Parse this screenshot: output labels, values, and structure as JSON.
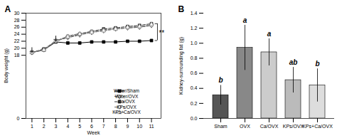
{
  "chart_data": [
    {
      "type": "line",
      "title": "A",
      "xlabel": "Week",
      "ylabel": "Body weight (g)",
      "x": [
        1,
        2,
        3,
        4,
        5,
        6,
        7,
        8,
        9,
        10,
        11
      ],
      "xlim": [
        0.5,
        11.8
      ],
      "xticks": [
        1,
        2,
        3,
        4,
        5,
        6,
        7,
        8,
        9,
        10,
        11
      ],
      "ylim": [
        0,
        30
      ],
      "yticks": [
        0,
        18,
        20,
        22,
        24,
        26,
        28,
        30
      ],
      "grid": false,
      "legend": "lower right",
      "series": [
        {
          "name": "Water/Sham",
          "color": "#000000",
          "marker": "square-filled",
          "line_style": "solid",
          "values": [
            18.8,
            19.5,
            21.8,
            21.5,
            21.5,
            21.8,
            21.8,
            21.8,
            22.0,
            22.0,
            22.2
          ]
        },
        {
          "name": "Water/OVX",
          "color": "#555555",
          "marker": "triangle-down-open",
          "line_style": "dashed",
          "values": [
            18.8,
            19.6,
            22.2,
            23.0,
            23.8,
            24.5,
            25.0,
            25.5,
            25.8,
            26.0,
            26.5
          ]
        },
        {
          "name": "Ca/OVX",
          "color": "#333333",
          "marker": "square-filled",
          "line_style": "dashed",
          "values": [
            18.8,
            19.8,
            22.0,
            23.2,
            24.0,
            24.8,
            25.5,
            25.8,
            26.2,
            26.5,
            27.0
          ]
        },
        {
          "name": "KPs/OVX",
          "color": "#666666",
          "marker": "circle-open",
          "line_style": "dashed",
          "values": [
            18.8,
            19.5,
            22.0,
            23.5,
            24.2,
            24.8,
            25.2,
            25.5,
            25.8,
            26.0,
            26.5
          ]
        },
        {
          "name": "KPs+Ca/OVX",
          "color": "#888888",
          "marker": "triangle-up-open",
          "line_style": "dashed",
          "values": [
            18.8,
            19.5,
            22.2,
            23.2,
            24.0,
            24.5,
            25.0,
            25.5,
            26.0,
            26.2,
            26.8
          ]
        }
      ],
      "arrows": [
        {
          "x": 1,
          "y_from": 20.2,
          "y_to": 18.8
        },
        {
          "x": 3,
          "y_from": 23.5,
          "y_to": 22.0
        }
      ],
      "bracket": {
        "text": "**",
        "x": 11.5,
        "x_end": 11.3,
        "y_top": 27.0,
        "y_bottom": 22.2
      }
    },
    {
      "type": "bar",
      "title": "B",
      "ylabel": "Kidney-surrounding fat (g)",
      "categories": [
        "Sham",
        "OVX",
        "Ca/OVX",
        "KPs/OVX",
        "KPs+Ca/OVX"
      ],
      "values": [
        0.31,
        0.94,
        0.88,
        0.51,
        0.44
      ],
      "errors": [
        0.13,
        0.3,
        0.18,
        0.17,
        0.22
      ],
      "colors": [
        "#555555",
        "#888888",
        "#cccccc",
        "#bbbbbb",
        "#dddddd"
      ],
      "significance_labels": [
        "b",
        "a",
        "a",
        "ab",
        "b"
      ],
      "ylim": [
        0,
        1.4
      ],
      "yticks": [
        {
          "value": 0,
          "label": "0.0"
        },
        0.2,
        0.4,
        0.6,
        0.8,
        {
          "value": 1,
          "label": "1.0"
        },
        1.2,
        1.4
      ],
      "grid": false
    }
  ]
}
